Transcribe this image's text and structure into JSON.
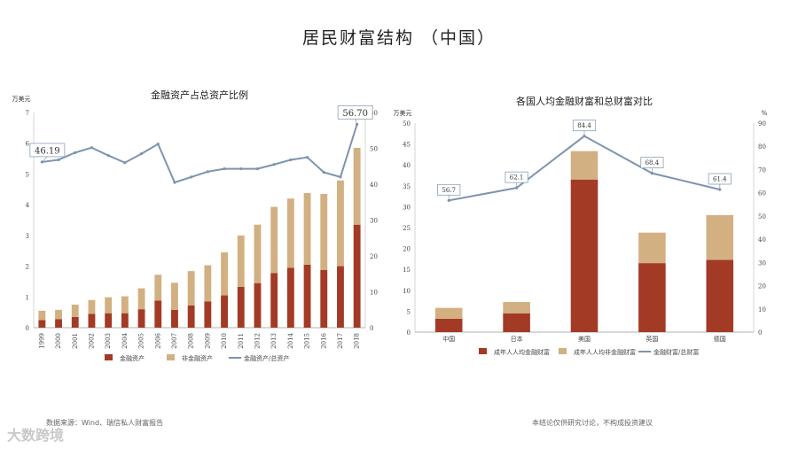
{
  "page": {
    "title": "居民财富结构 （中国）",
    "footnote_left": "数据来源：Wind、瑞信私人财富报告",
    "footnote_right": "本结论仅供研究讨论，不构成投资建议",
    "watermark": "大数跨境"
  },
  "chart_data": [
    {
      "type": "bar",
      "title": "金融资产占总资产比例",
      "ylabel_left": "万美元",
      "stacked": true,
      "categories": [
        "1999",
        "2000",
        "2001",
        "2002",
        "2003",
        "2004",
        "2005",
        "2006",
        "2007",
        "2008",
        "2009",
        "2010",
        "2011",
        "2012",
        "2013",
        "2014",
        "2015",
        "2016",
        "2017",
        "2018"
      ],
      "series": [
        {
          "name": "金融资产",
          "color": "#a33a25",
          "values": [
            0.25,
            0.28,
            0.35,
            0.45,
            0.47,
            0.47,
            0.6,
            0.88,
            0.58,
            0.72,
            0.85,
            1.05,
            1.33,
            1.45,
            1.78,
            1.95,
            2.05,
            1.88,
            2.0,
            3.35
          ]
        },
        {
          "name": "非金融资产",
          "color": "#d2b081",
          "values": [
            0.3,
            0.3,
            0.4,
            0.45,
            0.52,
            0.55,
            0.68,
            0.84,
            0.88,
            1.12,
            1.18,
            1.4,
            1.67,
            1.9,
            2.15,
            2.25,
            2.33,
            2.47,
            2.79,
            2.5
          ]
        },
        {
          "name": "金融资产/总资产",
          "color": "#7d94ae",
          "type": "line",
          "axis": "right",
          "values": [
            46.19,
            46.8,
            48.8,
            50.2,
            48.0,
            46.0,
            48.5,
            51.2,
            40.5,
            42.0,
            43.5,
            44.3,
            44.3,
            44.3,
            45.5,
            46.8,
            47.5,
            43.3,
            42.0,
            56.7
          ]
        }
      ],
      "ylim_left": [
        0,
        7
      ],
      "ylim_right": [
        0,
        60
      ],
      "yticks_left": [
        "0",
        "1",
        "2",
        "3",
        "4",
        "5",
        "6",
        "7"
      ],
      "yticks_right": [
        "0",
        "10",
        "20",
        "30",
        "40",
        "50",
        "60"
      ],
      "annotations": [
        {
          "category": "1999",
          "text": "46.19"
        },
        {
          "category": "2018",
          "text": "56.70"
        }
      ]
    },
    {
      "type": "bar",
      "title": "各国人均金融财富和总财富对比",
      "ylabel_left": "万美元",
      "ylabel_right": "%",
      "stacked": true,
      "categories": [
        "中国",
        "日本",
        "美国",
        "英国",
        "德国"
      ],
      "series": [
        {
          "name": "成年人人均金融财富",
          "color": "#a33a25",
          "values": [
            3.2,
            4.5,
            36.5,
            16.5,
            17.3
          ]
        },
        {
          "name": "成年人人均非金融财富",
          "color": "#d2b081",
          "values": [
            2.6,
            2.7,
            6.8,
            7.3,
            10.7
          ]
        },
        {
          "name": "金融财富/总财富",
          "color": "#7d94ae",
          "type": "line",
          "axis": "right",
          "values": [
            56.7,
            62.1,
            84.4,
            68.4,
            61.4
          ]
        }
      ],
      "ylim_left": [
        0,
        50
      ],
      "ylim_right": [
        0,
        90
      ],
      "yticks_left": [
        "0",
        "5",
        "10",
        "15",
        "20",
        "25",
        "30",
        "35",
        "40",
        "45",
        "50"
      ],
      "yticks_right": [
        "0",
        "10",
        "20",
        "30",
        "40",
        "50",
        "60",
        "70",
        "80",
        "90"
      ],
      "annotations": [
        {
          "category": "中国",
          "text": "56.7"
        },
        {
          "category": "日本",
          "text": "62.1"
        },
        {
          "category": "美国",
          "text": "84.4"
        },
        {
          "category": "英国",
          "text": "68.4"
        },
        {
          "category": "德国",
          "text": "61.4"
        }
      ]
    }
  ]
}
